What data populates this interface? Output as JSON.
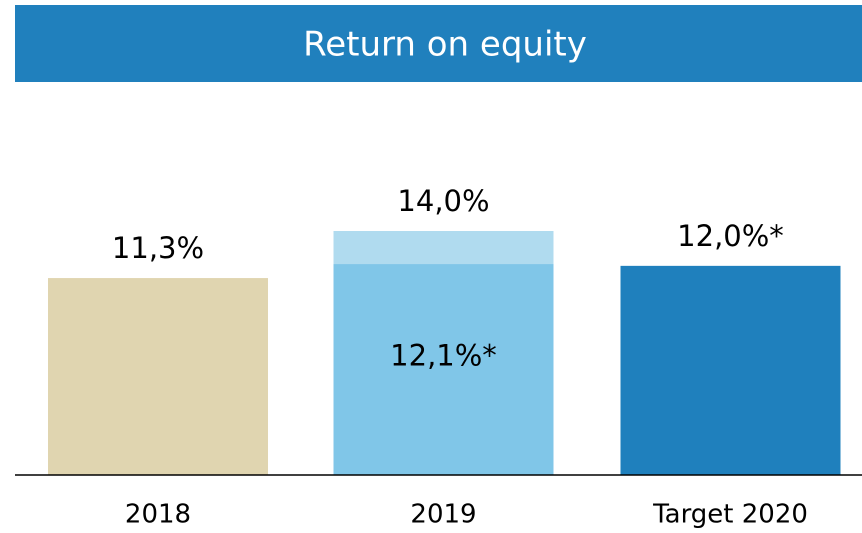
{
  "chart_data": {
    "type": "bar",
    "title": "Return on equity",
    "categories": [
      "2018",
      "2019",
      "Target 2020"
    ],
    "series": [
      {
        "values": [
          11.3,
          14.0,
          12.0
        ],
        "value_labels": [
          "11,3%",
          "14,0%",
          "12,0%*"
        ],
        "colors": [
          "#e0d5b0",
          "#b0dbef",
          "#1f80bd"
        ]
      },
      {
        "values": [
          null,
          12.1,
          null
        ],
        "value_labels": [
          null,
          "12,1%*",
          null
        ],
        "colors": [
          null,
          "#80c6e8",
          null
        ]
      }
    ],
    "ylim": [
      0,
      14
    ]
  }
}
